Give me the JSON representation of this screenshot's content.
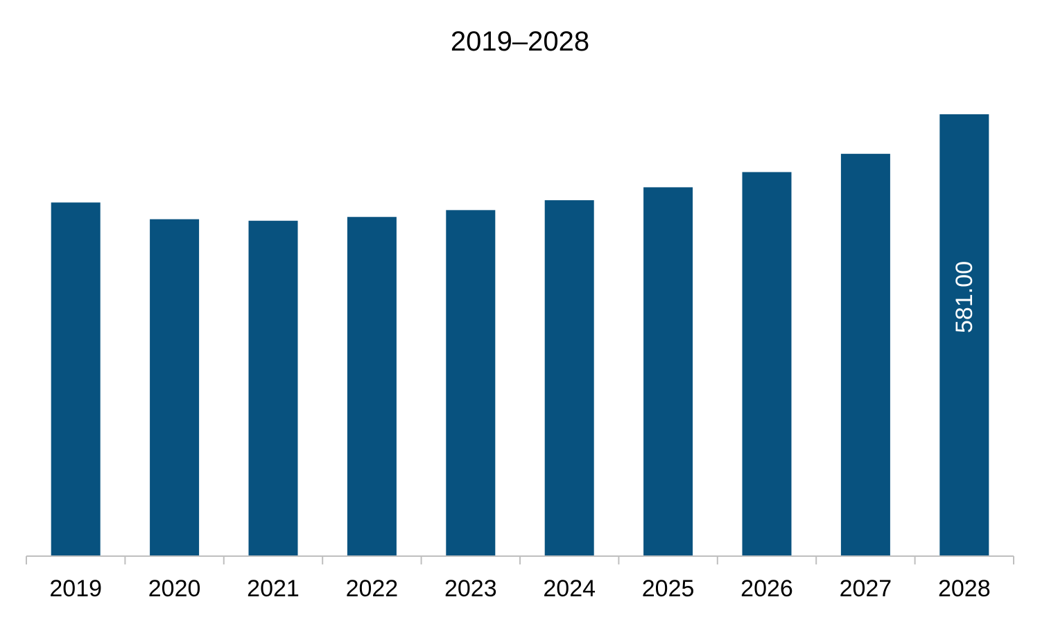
{
  "chart_data": {
    "type": "bar",
    "title": "2019–2028",
    "xlabel": "",
    "ylabel": "",
    "categories": [
      "2019",
      "2020",
      "2021",
      "2022",
      "2023",
      "2024",
      "2025",
      "2026",
      "2027",
      "2028"
    ],
    "values": [
      465,
      443,
      441,
      446,
      455,
      468,
      485,
      505,
      529,
      581
    ],
    "data_labels": [
      "",
      "",
      "",
      "",
      "",
      "",
      "",
      "",
      "",
      "581.00"
    ],
    "ylim": [
      0,
      581
    ],
    "grid": false,
    "legend": "none",
    "colors": {
      "bar": "#08527f",
      "axis": "#bfbfbf",
      "label_on_bar": "#ffffff"
    }
  }
}
